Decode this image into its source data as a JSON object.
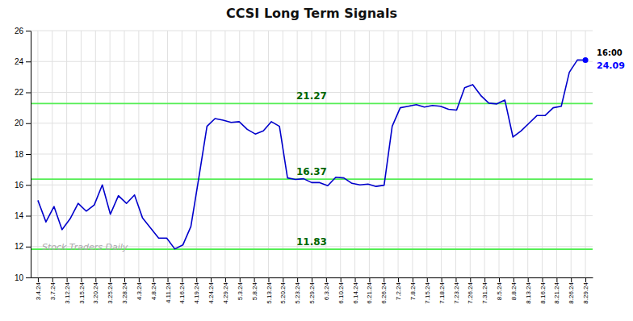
{
  "chart_data": {
    "type": "line",
    "title": "CCSI Long Term Signals",
    "watermark": "Stock Traders Daily",
    "grid": true,
    "xlim": [
      -0.5,
      38.5
    ],
    "xticks": [
      {
        "value": 0,
        "label": "3.4.24"
      },
      {
        "value": 1,
        "label": "3.7.24"
      },
      {
        "value": 2,
        "label": "3.12.24"
      },
      {
        "value": 3,
        "label": "3.15.24"
      },
      {
        "value": 4,
        "label": "3.20.24"
      },
      {
        "value": 5,
        "label": "3.25.24"
      },
      {
        "value": 6,
        "label": "3.28.24"
      },
      {
        "value": 7,
        "label": "4.3.24"
      },
      {
        "value": 8,
        "label": "4.8.24"
      },
      {
        "value": 9,
        "label": "4.11.24"
      },
      {
        "value": 10,
        "label": "4.16.24"
      },
      {
        "value": 11,
        "label": "4.19.24"
      },
      {
        "value": 12,
        "label": "4.24.24"
      },
      {
        "value": 13,
        "label": "4.29.24"
      },
      {
        "value": 14,
        "label": "5.3.24"
      },
      {
        "value": 15,
        "label": "5.8.24"
      },
      {
        "value": 16,
        "label": "5.13.24"
      },
      {
        "value": 17,
        "label": "5.20.24"
      },
      {
        "value": 18,
        "label": "5.23.24"
      },
      {
        "value": 19,
        "label": "5.29.24"
      },
      {
        "value": 20,
        "label": "6.3.24"
      },
      {
        "value": 21,
        "label": "6.10.24"
      },
      {
        "value": 22,
        "label": "6.14.24"
      },
      {
        "value": 23,
        "label": "6.21.24"
      },
      {
        "value": 24,
        "label": "6.26.24"
      },
      {
        "value": 25,
        "label": "7.2.24"
      },
      {
        "value": 26,
        "label": "7.8.24"
      },
      {
        "value": 27,
        "label": "7.15.24"
      },
      {
        "value": 28,
        "label": "7.18.24"
      },
      {
        "value": 29,
        "label": "7.23.24"
      },
      {
        "value": 30,
        "label": "7.26.24"
      },
      {
        "value": 31,
        "label": "7.31.24"
      },
      {
        "value": 32,
        "label": "8.5.24"
      },
      {
        "value": 33,
        "label": "8.8.24"
      },
      {
        "value": 34,
        "label": "8.13.24"
      },
      {
        "value": 35,
        "label": "8.16.24"
      },
      {
        "value": 36,
        "label": "8.21.24"
      },
      {
        "value": 37,
        "label": "8.26.24"
      },
      {
        "value": 38,
        "label": "8.29.24"
      }
    ],
    "ylim": [
      10,
      26
    ],
    "yticks": [
      10,
      12,
      14,
      16,
      18,
      20,
      22,
      24,
      26
    ],
    "series": [
      {
        "color": "#0000cc",
        "x": [
          0,
          0.5588,
          1.1176,
          1.6765,
          2.2353,
          2.7941,
          3.3529,
          3.9118,
          4.4706,
          5.0294,
          5.5882,
          6.1471,
          6.7059,
          7.2647,
          7.8235,
          8.3824,
          8.9412,
          9.5,
          10.0588,
          10.6176,
          11.1765,
          11.7353,
          12.2941,
          12.8529,
          13.4118,
          13.9706,
          14.5294,
          15.0882,
          15.6471,
          16.2059,
          16.7647,
          17.3235,
          17.8824,
          18.4412,
          19,
          19.5588,
          20.1176,
          20.6765,
          21.2353,
          21.7941,
          22.3529,
          22.9118,
          23.4706,
          24.0294,
          24.5882,
          25.1471,
          25.7059,
          26.2647,
          26.8235,
          27.3824,
          27.9412,
          28.5,
          29.0588,
          29.6176,
          30.1765,
          30.7353,
          31.2941,
          31.8529,
          32.4118,
          32.9706,
          33.5294,
          34.0882,
          34.6471,
          35.2059,
          35.7647,
          36.3235,
          36.8824,
          37.4412,
          38
        ],
        "values": [
          15.0,
          13.6,
          14.6,
          13.1,
          13.8,
          14.8,
          14.3,
          14.7,
          16.0,
          14.1,
          15.3,
          14.8,
          15.35,
          13.85,
          13.2,
          12.55,
          12.55,
          11.85,
          12.1,
          13.3,
          16.5,
          19.8,
          20.3,
          20.2,
          20.05,
          20.1,
          19.6,
          19.3,
          19.5,
          20.1,
          19.8,
          16.45,
          16.35,
          16.4,
          16.15,
          16.15,
          15.95,
          16.5,
          16.45,
          16.1,
          16.0,
          16.05,
          15.9,
          15.98,
          19.8,
          21.0,
          21.1,
          21.2,
          21.05,
          21.15,
          21.1,
          20.9,
          20.85,
          22.3,
          22.5,
          21.8,
          21.3,
          21.25,
          21.5,
          19.1,
          19.5,
          20.0,
          20.5,
          20.5,
          21.0,
          21.1,
          23.3,
          24.1,
          24.09
        ]
      }
    ],
    "hlines": [
      {
        "value": 11.83,
        "label": "11.83",
        "color": "#55ee55"
      },
      {
        "value": 16.37,
        "label": "16.37",
        "color": "#55ee55"
      },
      {
        "value": 21.27,
        "label": "21.27",
        "color": "#55ee55"
      }
    ],
    "end_labels": {
      "time": "16:00",
      "label": "24.09",
      "color": "#0000ff"
    }
  }
}
